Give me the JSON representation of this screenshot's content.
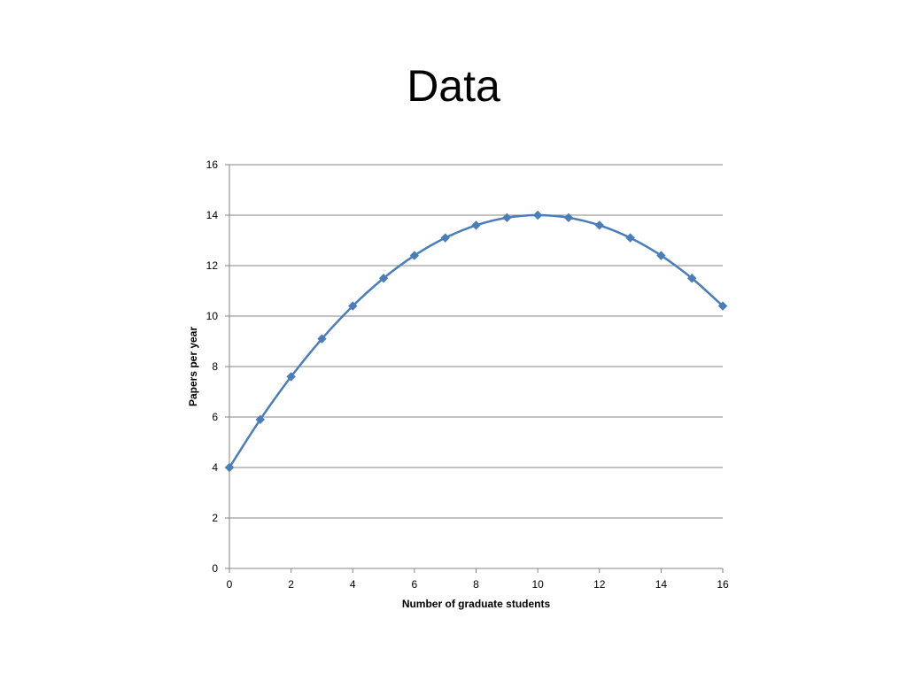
{
  "slide": {
    "title": "Data"
  },
  "chart_data": {
    "type": "line",
    "title": "",
    "xlabel": "Number of graduate students",
    "ylabel": "Papers per year",
    "xlim": [
      0,
      16
    ],
    "ylim": [
      0,
      16
    ],
    "x_ticks": [
      0,
      2,
      4,
      6,
      8,
      10,
      12,
      14,
      16
    ],
    "y_ticks": [
      0,
      2,
      4,
      6,
      8,
      10,
      12,
      14,
      16
    ],
    "grid": "horizontal",
    "legend": "none",
    "smooth": true,
    "marker": "diamond",
    "series": [
      {
        "color": "#4a7ebb",
        "x": [
          0,
          1,
          2,
          3,
          4,
          5,
          6,
          7,
          8,
          9,
          10,
          11,
          12,
          13,
          14,
          15,
          16
        ],
        "y": [
          4,
          5.9,
          7.6,
          9.1,
          10.4,
          11.5,
          12.4,
          13.1,
          13.6,
          13.9,
          14,
          13.9,
          13.6,
          13.1,
          12.4,
          11.5,
          10.4
        ]
      }
    ]
  }
}
